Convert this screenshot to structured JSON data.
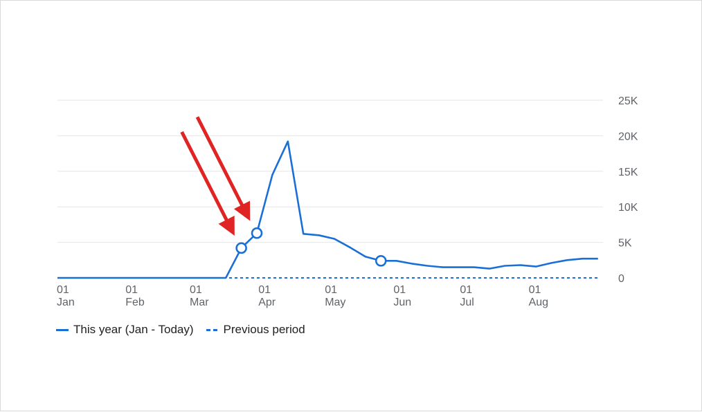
{
  "chart_data": {
    "type": "line",
    "x": [
      "2024-01-01",
      "2024-02-01",
      "2024-03-01",
      "2024-03-17",
      "2024-03-24",
      "2024-03-31",
      "2024-04-07",
      "2024-04-14",
      "2024-04-21",
      "2024-04-28",
      "2024-05-05",
      "2024-05-12",
      "2024-05-19",
      "2024-05-26",
      "2024-06-02",
      "2024-06-09",
      "2024-06-16",
      "2024-06-23",
      "2024-06-30",
      "2024-07-07",
      "2024-07-14",
      "2024-07-21",
      "2024-07-28",
      "2024-08-04",
      "2024-08-11",
      "2024-08-18",
      "2024-08-25",
      "2024-09-01"
    ],
    "series": [
      {
        "name": "This year (Jan - Today)",
        "values": [
          0,
          0,
          0,
          0,
          4200,
          6300,
          14500,
          19200,
          6200,
          6000,
          5500,
          4300,
          3000,
          2400,
          2400,
          2000,
          1700,
          1500,
          1500,
          1500,
          1300,
          1700,
          1800,
          1600,
          2100,
          2500,
          2700,
          2700
        ],
        "markers": [
          "2024-03-24",
          "2024-03-31",
          "2024-05-26"
        ]
      },
      {
        "name": "Previous period",
        "values": [
          0,
          0,
          0,
          0,
          0,
          0,
          0,
          0,
          0,
          0,
          0,
          0,
          0,
          0,
          0,
          0,
          0,
          0,
          0,
          0,
          0,
          0,
          0,
          0,
          0,
          0,
          0,
          0
        ],
        "dashed": true
      }
    ],
    "y_ticks": [
      "0",
      "5K",
      "10K",
      "15K",
      "20K",
      "25K"
    ],
    "ylim": [
      0,
      25000
    ],
    "x_ticks": [
      {
        "day": "01",
        "month": "Jan",
        "date": "2024-01-01"
      },
      {
        "day": "01",
        "month": "Feb",
        "date": "2024-02-01"
      },
      {
        "day": "01",
        "month": "Mar",
        "date": "2024-03-01"
      },
      {
        "day": "01",
        "month": "Apr",
        "date": "2024-04-01"
      },
      {
        "day": "01",
        "month": "May",
        "date": "2024-05-01"
      },
      {
        "day": "01",
        "month": "Jun",
        "date": "2024-06-01"
      },
      {
        "day": "01",
        "month": "Jul",
        "date": "2024-07-01"
      },
      {
        "day": "01",
        "month": "Aug",
        "date": "2024-08-01"
      }
    ],
    "grid": true,
    "legend_position": "bottom-left",
    "annotations": [
      {
        "type": "arrow",
        "color": "#e02424",
        "target": "2024-03-24"
      },
      {
        "type": "arrow",
        "color": "#e02424",
        "target": "2024-03-31"
      }
    ],
    "colors": {
      "series": "#1a6fd6",
      "arrow": "#e02424",
      "grid": "#e6e6e6",
      "axis_text": "#5f6368"
    }
  },
  "legend": {
    "this_year": "This year (Jan - Today)",
    "previous": "Previous period"
  }
}
